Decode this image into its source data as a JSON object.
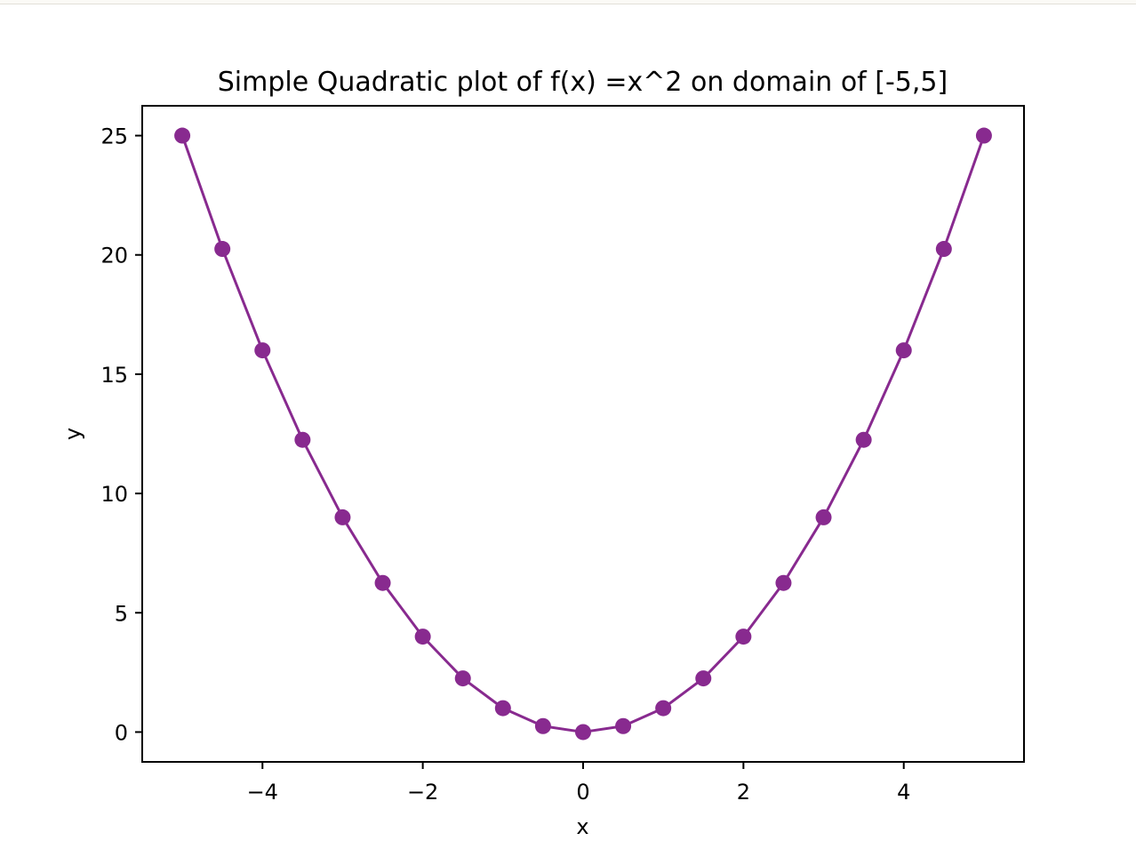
{
  "chart_data": {
    "type": "line",
    "title": "Simple Quadratic plot of f(x) =x^2 on domain of [-5,5]",
    "xlabel": "x",
    "ylabel": "y",
    "x": [
      -5,
      -4.5,
      -4,
      -3.5,
      -3,
      -2.5,
      -2,
      -1.5,
      -1,
      -0.5,
      0,
      0.5,
      1,
      1.5,
      2,
      2.5,
      3,
      3.5,
      4,
      4.5,
      5
    ],
    "series": [
      {
        "values": [
          25,
          20.25,
          16,
          12.25,
          9,
          6.25,
          4,
          2.25,
          1,
          0.25,
          0,
          0.25,
          1,
          2.25,
          4,
          6.25,
          9,
          12.25,
          16,
          20.25,
          25
        ],
        "marker": "circle",
        "color": "#882a8f"
      }
    ],
    "xlim": [
      -5.5,
      5.5
    ],
    "ylim": [
      -1.25,
      26.25
    ],
    "xticks": [
      -4,
      -2,
      0,
      2,
      4
    ],
    "xtick_labels": [
      "−4",
      "−2",
      "0",
      "2",
      "4"
    ],
    "yticks": [
      0,
      5,
      10,
      15,
      20,
      25
    ],
    "ytick_labels": [
      "0",
      "5",
      "10",
      "15",
      "20",
      "25"
    ],
    "grid": false,
    "legend": "none"
  }
}
